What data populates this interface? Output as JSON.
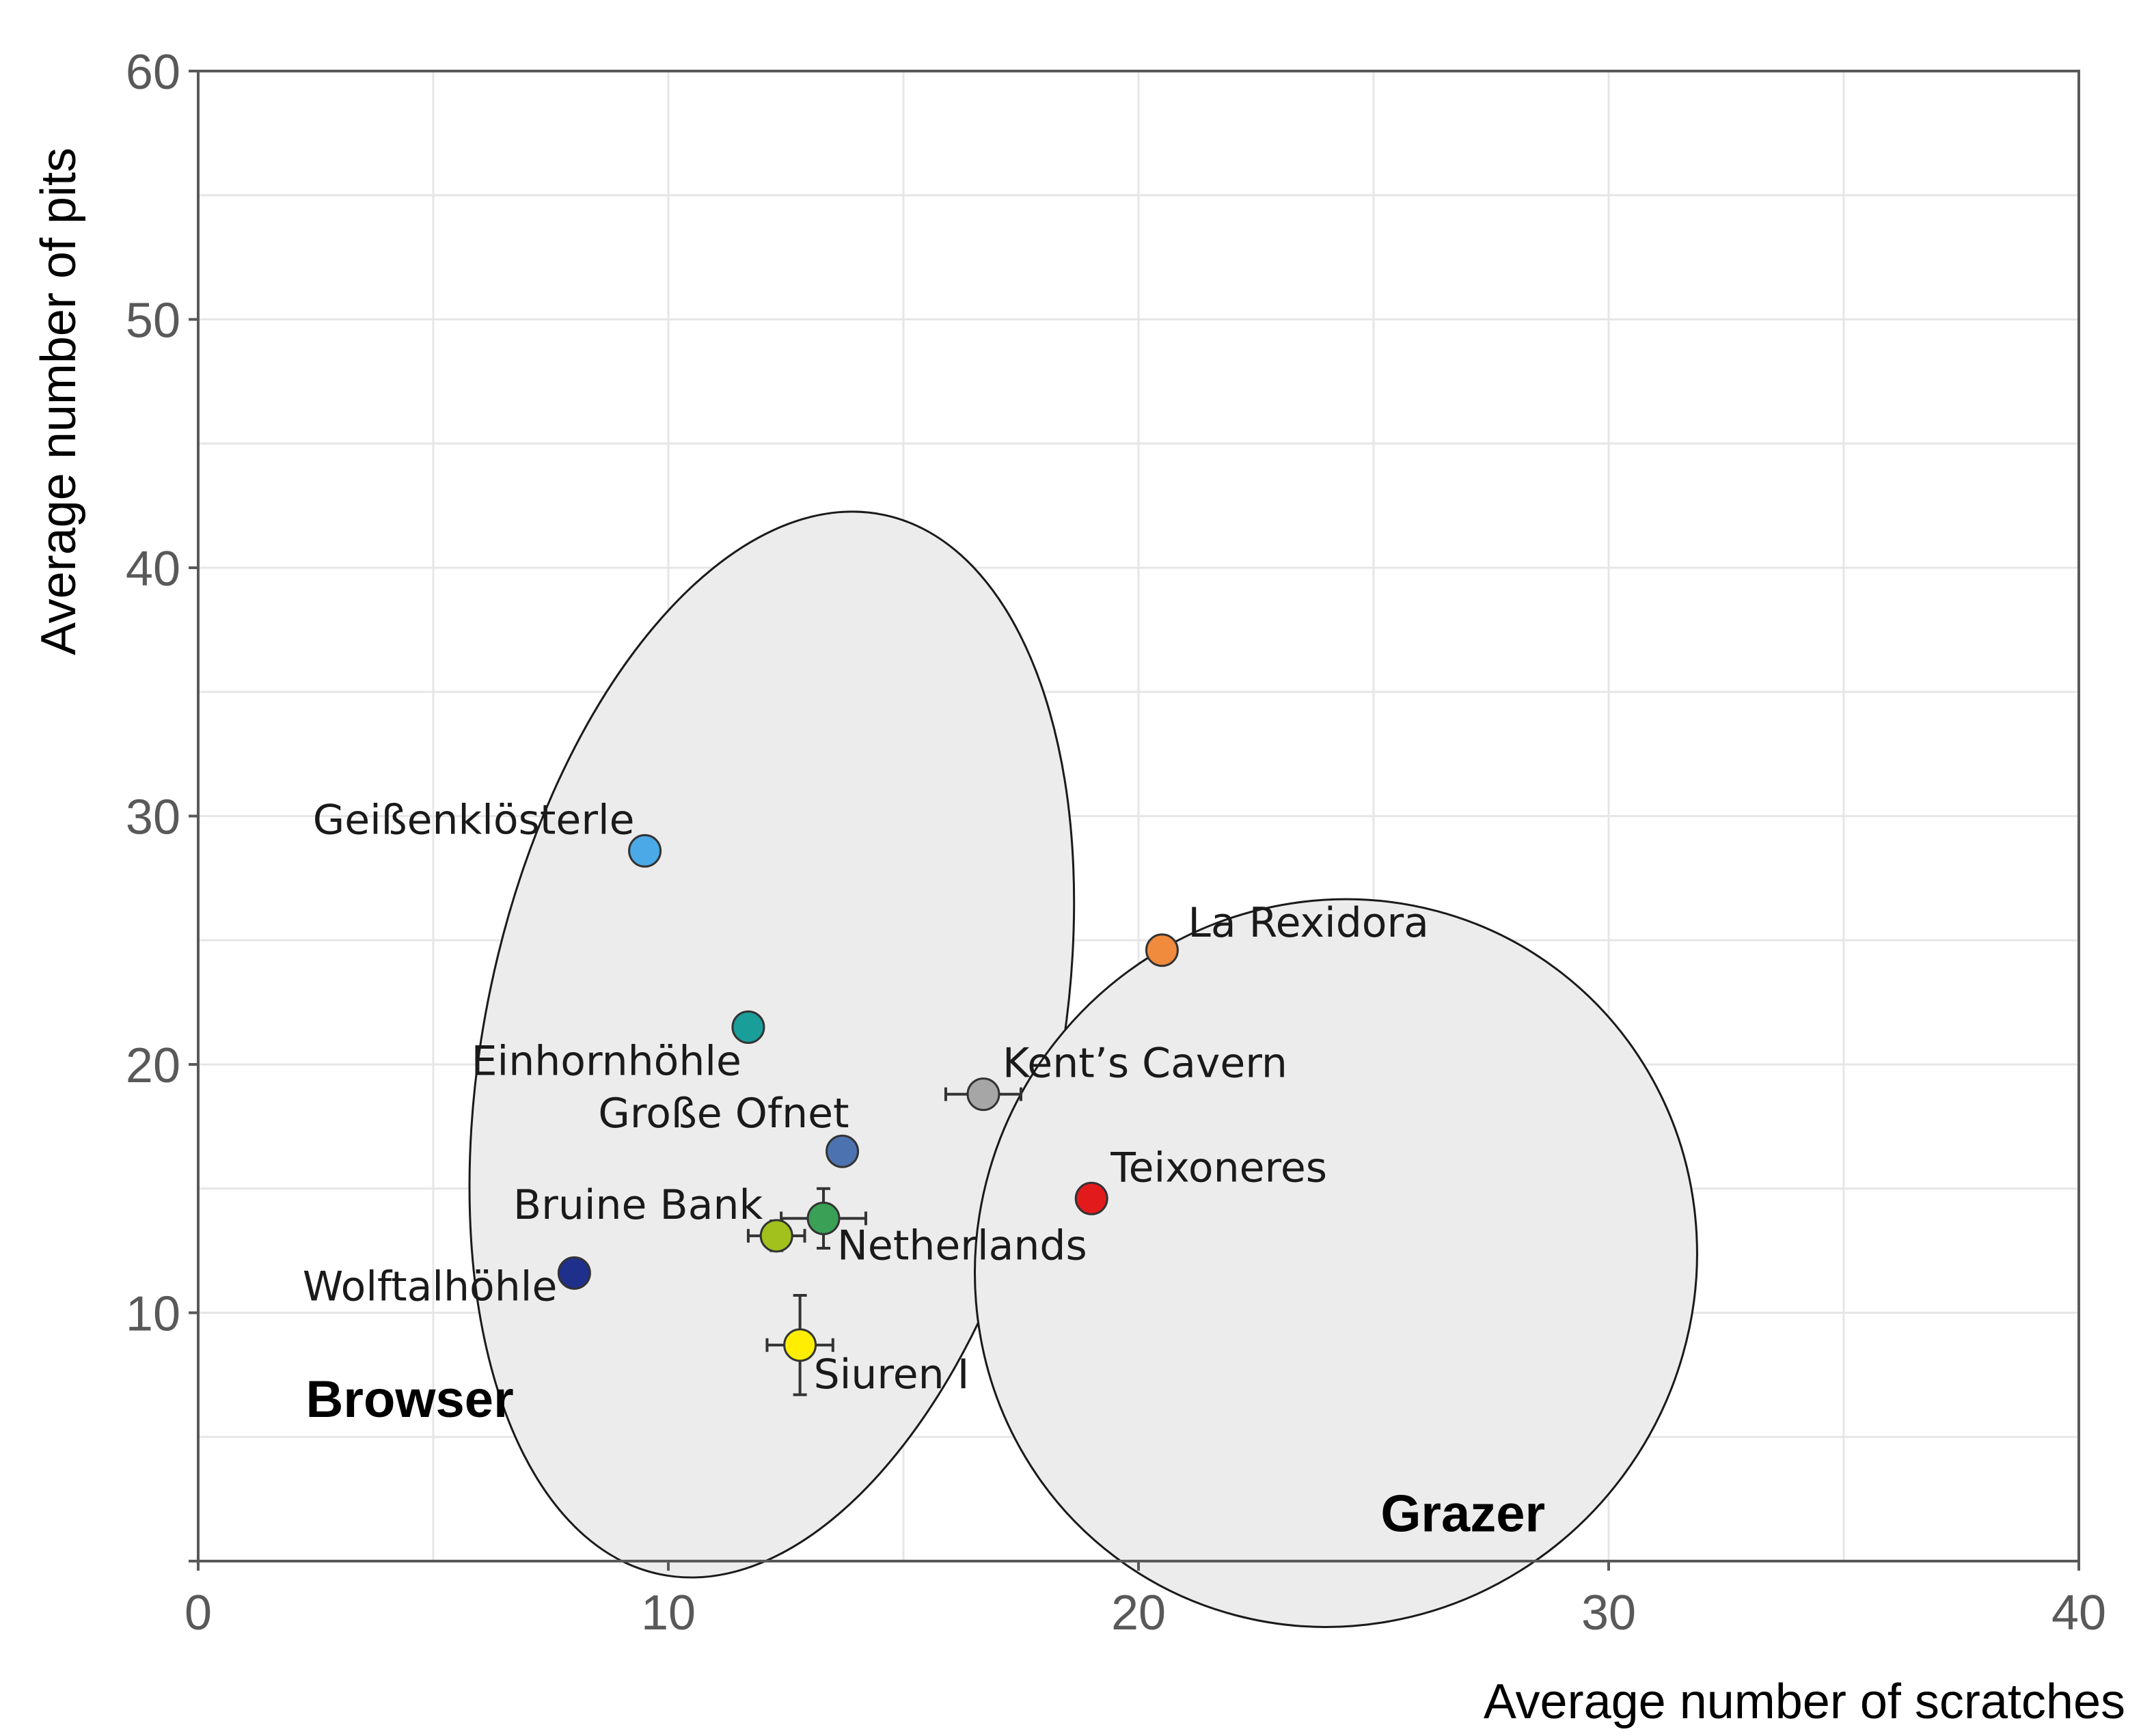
{
  "chart_data": {
    "type": "scatter",
    "title": "",
    "xlabel": "Average number of scratches",
    "ylabel": "Average number of pits",
    "xlim": [
      0,
      40
    ],
    "ylim": [
      0,
      60
    ],
    "xticks": [
      "0",
      "10",
      "20",
      "30",
      "40"
    ],
    "yticks": [
      "10",
      "20",
      "30",
      "40",
      "50",
      "60"
    ],
    "grid": true,
    "points": [
      {
        "name": "Geißenklösterle",
        "x": 9.5,
        "y": 28.6,
        "color": "#4aa9e6"
      },
      {
        "name": "Einhornhöhle",
        "x": 11.7,
        "y": 21.5,
        "color": "#1a9e9a"
      },
      {
        "name": "Große Ofnet",
        "x": 13.7,
        "y": 16.5,
        "color": "#4c72b0"
      },
      {
        "name": "Bruine Bank",
        "x": 12.3,
        "y": 13.1,
        "color": "#a2c11c",
        "xerr": 0.6,
        "yerr": 0.6
      },
      {
        "name": "Netherlands",
        "x": 13.3,
        "y": 13.8,
        "color": "#3aa055",
        "xerr": 0.9,
        "yerr": 1.2
      },
      {
        "name": "Wolftalhöhle",
        "x": 8.0,
        "y": 11.6,
        "color": "#1f2f8c"
      },
      {
        "name": "Siuren I",
        "x": 12.8,
        "y": 8.7,
        "color": "#ffee00",
        "xerr": 0.7,
        "yerr": 2.0
      },
      {
        "name": "Kent’s Cavern",
        "x": 16.7,
        "y": 18.8,
        "color": "#a6a6a6",
        "xerr": 0.8,
        "yerr": 0
      },
      {
        "name": "Teixoneres",
        "x": 19.0,
        "y": 14.6,
        "color": "#e31a1c"
      },
      {
        "name": "La Rexidora",
        "x": 20.5,
        "y": 24.6,
        "color": "#f08a3c"
      }
    ],
    "regions": [
      {
        "name": "Browser",
        "center": [
          12.2,
          20.8
        ],
        "rx": 6.1,
        "ry": 21.8,
        "angle_deg": 12,
        "fill": "#ececec"
      },
      {
        "name": "Grazer",
        "center": [
          24.2,
          12.0
        ],
        "rx": 7.6,
        "ry": 14.8,
        "angle_deg": 37,
        "fill": "#ececec"
      }
    ]
  }
}
